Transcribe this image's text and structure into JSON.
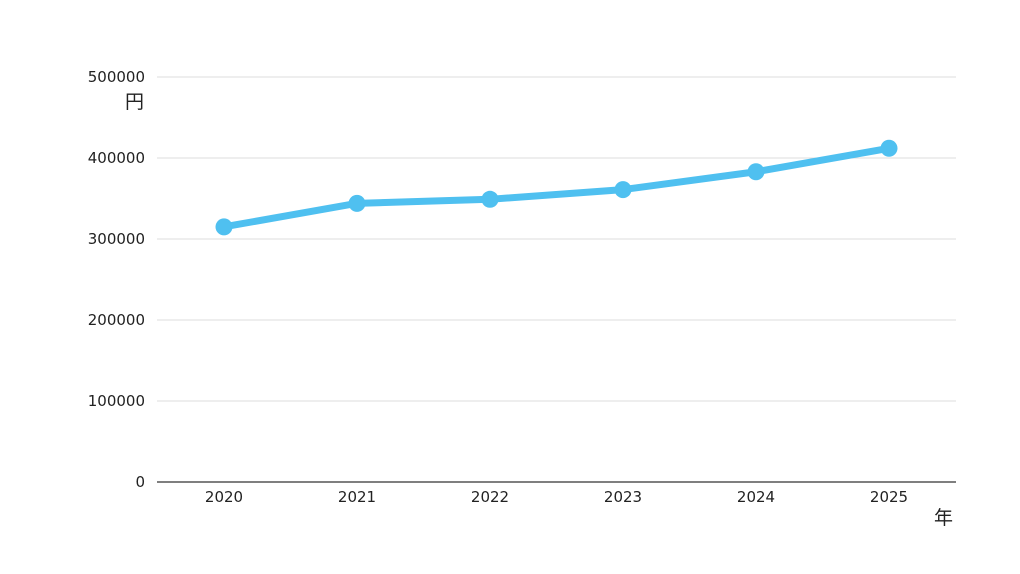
{
  "chart_data": {
    "type": "line",
    "title": "",
    "xlabel": "年",
    "ylabel": "円",
    "categories": [
      "2020",
      "2021",
      "2022",
      "2023",
      "2024",
      "2025"
    ],
    "yticks": [
      "0",
      "100000",
      "200000",
      "300000",
      "400000",
      "500000"
    ],
    "ylim": [
      0,
      500000
    ],
    "grid": true,
    "series": [
      {
        "values": [
          315000,
          344000,
          349000,
          361000,
          383000,
          412000
        ],
        "color": "#4fc0f0"
      }
    ]
  }
}
